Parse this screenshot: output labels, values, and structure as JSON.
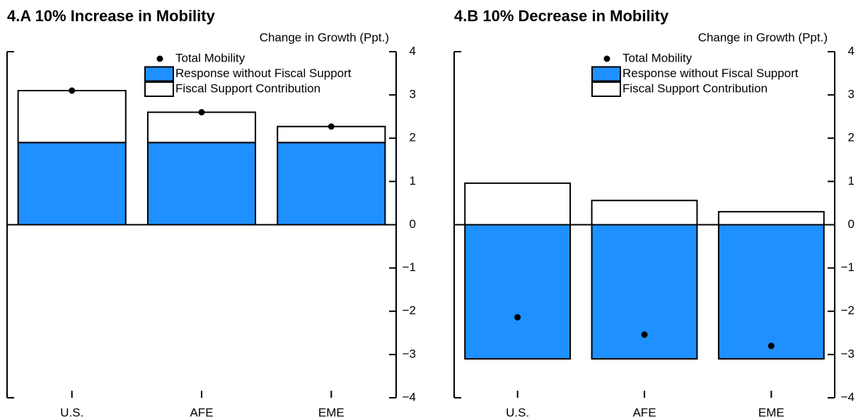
{
  "chart_data": [
    {
      "type": "bar",
      "title": "4.A 10% Increase in Mobility",
      "y_label": "Change in Growth (Ppt.)",
      "categories": [
        "U.S.",
        "AFE",
        "EME"
      ],
      "series": [
        {
          "name": "Total Mobility",
          "marker": "dot",
          "color": "#000000",
          "values": [
            3.1,
            2.6,
            2.27
          ]
        },
        {
          "name": "Response without Fiscal Support",
          "marker": "bar",
          "color": "#1e90ff",
          "values": [
            1.9,
            1.9,
            1.9
          ]
        },
        {
          "name": "Fiscal Support Contribution",
          "marker": "bar",
          "color": "#ffffff",
          "values": [
            1.2,
            0.7,
            0.37
          ]
        }
      ],
      "ylim": [
        -4,
        4
      ],
      "yticks": [
        {
          "value": -4,
          "label": "−4"
        },
        {
          "value": -3,
          "label": "−3"
        },
        {
          "value": -2,
          "label": "−2"
        },
        {
          "value": -1,
          "label": "−1"
        },
        0,
        1,
        2,
        3,
        4
      ]
    },
    {
      "type": "bar",
      "title": "4.B 10% Decrease in Mobility",
      "y_label": "Change in Growth (Ppt.)",
      "categories": [
        "U.S.",
        "AFE",
        "EME"
      ],
      "series": [
        {
          "name": "Total Mobility",
          "marker": "dot",
          "color": "#000000",
          "values": [
            -2.14,
            -2.54,
            -2.8
          ]
        },
        {
          "name": "Response without Fiscal Support",
          "marker": "bar",
          "color": "#1e90ff",
          "values": [
            -3.1,
            -3.1,
            -3.1
          ]
        },
        {
          "name": "Fiscal Support Contribution",
          "marker": "bar",
          "color": "#ffffff",
          "values": [
            0.96,
            0.56,
            0.3
          ]
        }
      ],
      "ylim": [
        -4,
        4
      ],
      "yticks": [
        {
          "value": -4,
          "label": "−4"
        },
        {
          "value": -3,
          "label": "−3"
        },
        {
          "value": -2,
          "label": "−2"
        },
        {
          "value": -1,
          "label": "−1"
        },
        0,
        1,
        2,
        3,
        4
      ]
    }
  ]
}
